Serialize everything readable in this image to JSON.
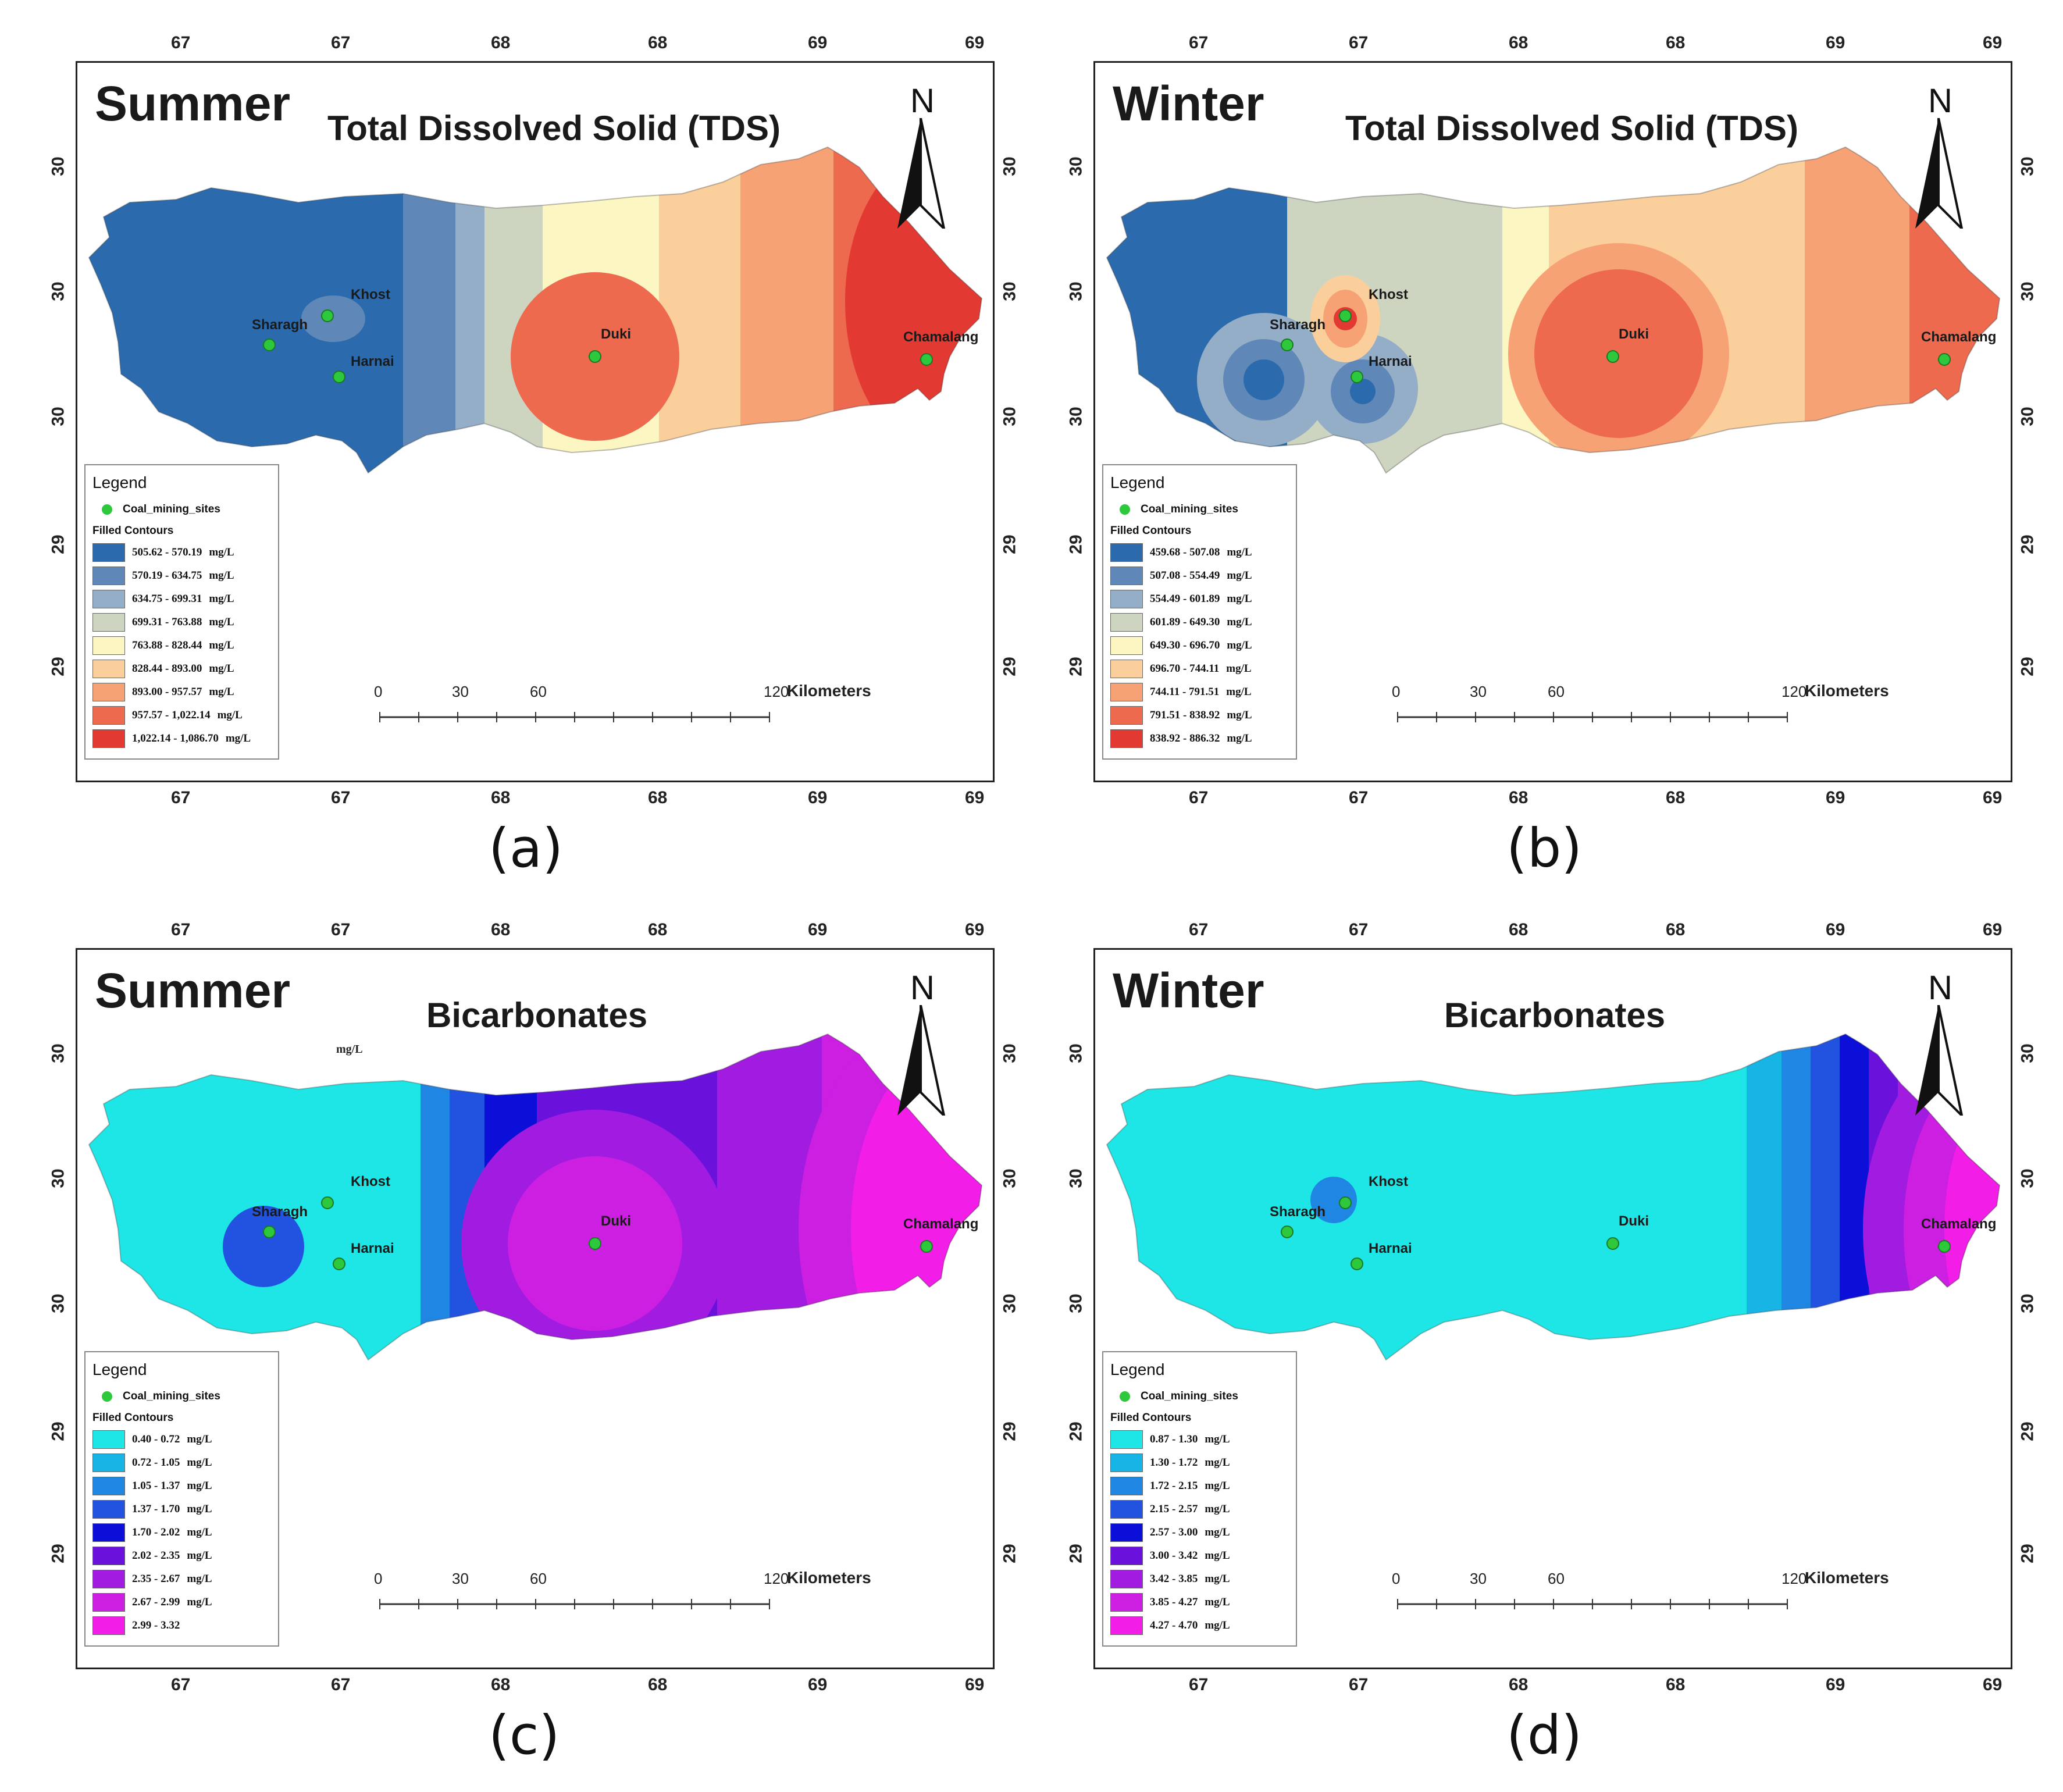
{
  "units": "mg/L",
  "site_marker_color": "#2ec83c",
  "legend_labels": {
    "title": "Legend",
    "sites": "Coal_mining_sites",
    "contours": "Filled Contours"
  },
  "scale_bar": {
    "ticks": [
      "0",
      "30",
      "60",
      "120"
    ],
    "unit": "Kilometers"
  },
  "north_label": "N",
  "panels": [
    {
      "id": "a",
      "caption": "(a)",
      "season": "Summer",
      "title": "Total Dissolved Solid (TDS)",
      "extra_text": "",
      "top_ticks": [
        "67",
        "67",
        "68",
        "68",
        "69",
        "69"
      ],
      "bottom_ticks": [
        "67",
        "67",
        "68",
        "68",
        "69",
        "69"
      ],
      "left_ticks": [
        "30",
        "30",
        "30",
        "29",
        "29"
      ],
      "right_ticks": [
        "30",
        "30",
        "30",
        "29",
        "29"
      ],
      "sites": [
        {
          "name": "Sharagh"
        },
        {
          "name": "Khost"
        },
        {
          "name": "Harnai"
        },
        {
          "name": "Duki"
        },
        {
          "name": "Chamalang"
        }
      ],
      "legend": [
        {
          "range": "505.62 - 570.19",
          "unit": "mg/L",
          "color": "#2b6bad"
        },
        {
          "range": "570.19 - 634.75",
          "unit": "mg/L",
          "color": "#5f88b8"
        },
        {
          "range": "634.75 - 699.31",
          "unit": "mg/L",
          "color": "#94aec8"
        },
        {
          "range": "699.31 - 763.88",
          "unit": "mg/L",
          "color": "#cdd5c0"
        },
        {
          "range": "763.88 - 828.44",
          "unit": "mg/L",
          "color": "#fcf6c2"
        },
        {
          "range": "828.44 - 893.00",
          "unit": "mg/L",
          "color": "#fbcf9c"
        },
        {
          "range": "893.00 - 957.57",
          "unit": "mg/L",
          "color": "#f6a275"
        },
        {
          "range": "957.57 - 1,022.14",
          "unit": "mg/L",
          "color": "#ed6a4e"
        },
        {
          "range": "1,022.14 - 1,086.70",
          "unit": "mg/L",
          "color": "#e23a32"
        }
      ]
    },
    {
      "id": "b",
      "caption": "(b)",
      "season": "Winter",
      "title": "Total Dissolved Solid (TDS)",
      "extra_text": "",
      "top_ticks": [
        "67",
        "67",
        "68",
        "68",
        "69",
        "69"
      ],
      "bottom_ticks": [
        "67",
        "67",
        "68",
        "68",
        "69",
        "69"
      ],
      "left_ticks": [
        "30",
        "30",
        "30",
        "29",
        "29"
      ],
      "right_ticks": [
        "30",
        "30",
        "30",
        "29",
        "29"
      ],
      "sites": [
        {
          "name": "Sharagh"
        },
        {
          "name": "Khost"
        },
        {
          "name": "Harnai"
        },
        {
          "name": "Duki"
        },
        {
          "name": "Chamalang"
        }
      ],
      "legend": [
        {
          "range": "459.68 - 507.08",
          "unit": "mg/L",
          "color": "#2b6bad"
        },
        {
          "range": "507.08 - 554.49",
          "unit": "mg/L",
          "color": "#5f88b8"
        },
        {
          "range": "554.49 - 601.89",
          "unit": "mg/L",
          "color": "#94aec8"
        },
        {
          "range": "601.89 - 649.30",
          "unit": "mg/L",
          "color": "#cdd5c0"
        },
        {
          "range": "649.30 - 696.70",
          "unit": "mg/L",
          "color": "#fcf6c2"
        },
        {
          "range": "696.70 - 744.11",
          "unit": "mg/L",
          "color": "#fbcf9c"
        },
        {
          "range": "744.11 - 791.51",
          "unit": "mg/L",
          "color": "#f6a275"
        },
        {
          "range": "791.51 - 838.92",
          "unit": "mg/L",
          "color": "#ed6a4e"
        },
        {
          "range": "838.92 - 886.32",
          "unit": "mg/L",
          "color": "#e23a32"
        }
      ]
    },
    {
      "id": "c",
      "caption": "(c)",
      "season": "Summer",
      "title": "Bicarbonates",
      "extra_text": "mg/L",
      "top_ticks": [
        "67",
        "67",
        "68",
        "68",
        "69",
        "69"
      ],
      "bottom_ticks": [
        "67",
        "67",
        "68",
        "68",
        "69",
        "69"
      ],
      "left_ticks": [
        "30",
        "30",
        "30",
        "29",
        "29"
      ],
      "right_ticks": [
        "30",
        "30",
        "30",
        "29",
        "29"
      ],
      "sites": [
        {
          "name": "Sharagh"
        },
        {
          "name": "Khost"
        },
        {
          "name": "Harnai"
        },
        {
          "name": "Duki"
        },
        {
          "name": "Chamalang"
        }
      ],
      "legend": [
        {
          "range": "0.40 - 0.72",
          "unit": "mg/L",
          "color": "#1fe6e6"
        },
        {
          "range": "0.72 - 1.05",
          "unit": "mg/L",
          "color": "#17b4e6"
        },
        {
          "range": "1.05 - 1.37",
          "unit": "mg/L",
          "color": "#1f86e3"
        },
        {
          "range": "1.37 - 1.70",
          "unit": "mg/L",
          "color": "#2252e0"
        },
        {
          "range": "1.70 - 2.02",
          "unit": "mg/L",
          "color": "#0c0fd8"
        },
        {
          "range": "2.02 - 2.35",
          "unit": "mg/L",
          "color": "#6a12db"
        },
        {
          "range": "2.35 - 2.67",
          "unit": "mg/L",
          "color": "#a21be0"
        },
        {
          "range": "2.67 - 2.99",
          "unit": "mg/L",
          "color": "#cc1fe2"
        },
        {
          "range": "2.99 - 3.32",
          "unit": "",
          "color": "#f21ee8"
        }
      ]
    },
    {
      "id": "d",
      "caption": "(d)",
      "season": "Winter",
      "title": "Bicarbonates",
      "extra_text": "",
      "top_ticks": [
        "67",
        "67",
        "68",
        "68",
        "69",
        "69"
      ],
      "bottom_ticks": [
        "67",
        "67",
        "68",
        "68",
        "69",
        "69"
      ],
      "left_ticks": [
        "30",
        "30",
        "30",
        "29",
        "29"
      ],
      "right_ticks": [
        "30",
        "30",
        "30",
        "29",
        "29"
      ],
      "sites": [
        {
          "name": "Sharagh"
        },
        {
          "name": "Khost"
        },
        {
          "name": "Harnai"
        },
        {
          "name": "Duki"
        },
        {
          "name": "Chamalang"
        }
      ],
      "legend": [
        {
          "range": "0.87 - 1.30",
          "unit": "mg/L",
          "color": "#1fe6e6"
        },
        {
          "range": "1.30 - 1.72",
          "unit": "mg/L",
          "color": "#17b4e6"
        },
        {
          "range": "1.72 - 2.15",
          "unit": "mg/L",
          "color": "#1f86e3"
        },
        {
          "range": "2.15 - 2.57",
          "unit": "mg/L",
          "color": "#2252e0"
        },
        {
          "range": "2.57 - 3.00",
          "unit": "mg/L",
          "color": "#0c0fd8"
        },
        {
          "range": "3.00 - 3.42",
          "unit": "mg/L",
          "color": "#6a12db"
        },
        {
          "range": "3.42 - 3.85",
          "unit": "mg/L",
          "color": "#a21be0"
        },
        {
          "range": "3.85 - 4.27",
          "unit": "mg/L",
          "color": "#cc1fe2"
        },
        {
          "range": "4.27 - 4.70",
          "unit": "mg/L",
          "color": "#f21ee8"
        }
      ]
    }
  ]
}
